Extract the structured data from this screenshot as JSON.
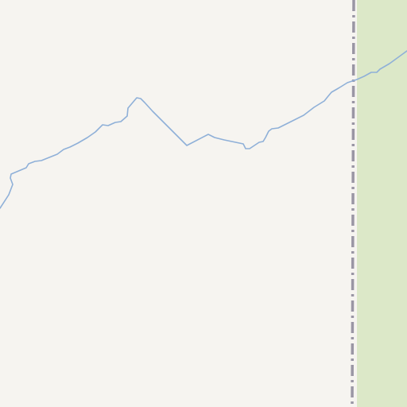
{
  "map": {
    "colors": {
      "land": "#f6f4f0",
      "park": "#dce8c8",
      "waterway": "#8fb0d8",
      "boundary": "#9a96a4"
    },
    "features": {
      "waterway": "stream",
      "boundary": "administrative-boundary",
      "park": "protected-area"
    }
  }
}
